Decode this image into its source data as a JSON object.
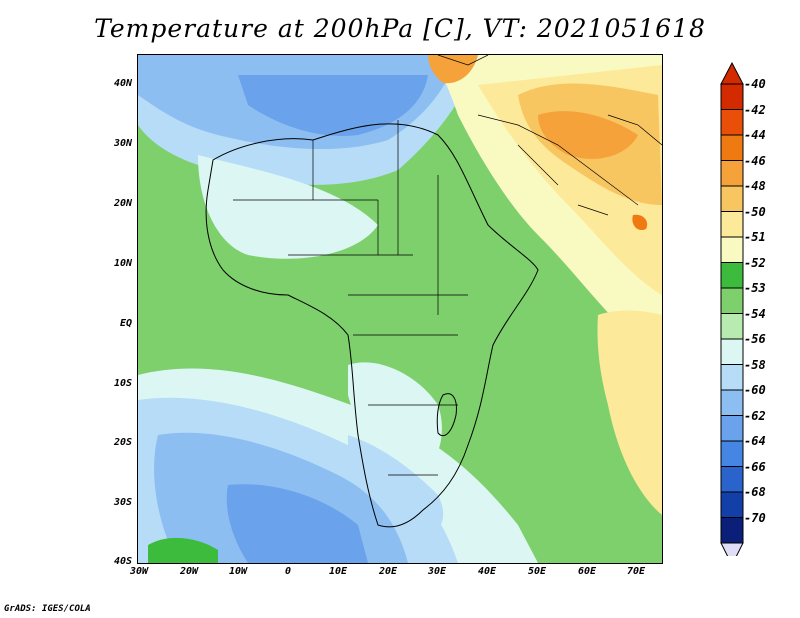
{
  "title": "Temperature at 200hPa [C], VT: 2021051618",
  "credit": "GrADS: IGES/COLA",
  "lat_labels": [
    "40N",
    "30N",
    "20N",
    "10N",
    "EQ",
    "10S",
    "20S",
    "30S",
    "40S"
  ],
  "lon_labels": [
    "30W",
    "20W",
    "10W",
    "0",
    "10E",
    "20E",
    "30E",
    "40E",
    "50E",
    "60E",
    "70E"
  ],
  "legend": {
    "labels": [
      "-40",
      "-42",
      "-44",
      "-46",
      "-48",
      "-50",
      "-51",
      "-52",
      "-53",
      "-54",
      "-56",
      "-58",
      "-60",
      "-62",
      "-64",
      "-66",
      "-68",
      "-70"
    ],
    "colors": [
      "#d42a00",
      "#ea4f0a",
      "#f07a12",
      "#f5a23a",
      "#f8c660",
      "#fde99a",
      "#f9f9c2",
      "#3dbb3d",
      "#7ed06c",
      "#b7ebb0",
      "#dcf7f3",
      "#b6dcf7",
      "#8cbef2",
      "#6aa2ec",
      "#4585e3",
      "#2a63cc",
      "#133fa8",
      "#0b1f78"
    ],
    "top_arrow_color": "#d42a00",
    "bottom_arrow_color": "#e0ddf6"
  }
}
